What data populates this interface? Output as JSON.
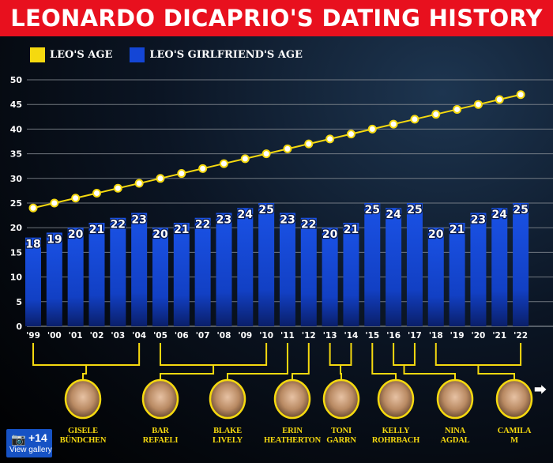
{
  "title": "LEONARDO DICAPRIO'S DATING HISTORY",
  "colors": {
    "leo": "#f5d90f",
    "girlfriend": "#1446d6",
    "title_bg": "#e8101e"
  },
  "chart_data": {
    "type": "bar+line",
    "title": "LEONARDO DICAPRIO'S DATING HISTORY",
    "categories": [
      "'99",
      "'00",
      "'01",
      "'02",
      "'03",
      "'04",
      "'05",
      "'06",
      "'07",
      "'08",
      "'09",
      "'10",
      "'11",
      "'12",
      "'13",
      "'14",
      "'15",
      "'16",
      "'17",
      "'18",
      "'19",
      "'20",
      "'21",
      "'22"
    ],
    "series": [
      {
        "name": "LEO'S AGE",
        "type": "line",
        "values": [
          24,
          25,
          26,
          27,
          28,
          29,
          30,
          31,
          32,
          33,
          34,
          35,
          36,
          37,
          38,
          39,
          40,
          41,
          42,
          43,
          44,
          45,
          46,
          47
        ]
      },
      {
        "name": "LEO'S GIRLFRIEND'S AGE",
        "type": "bar",
        "values": [
          18,
          19,
          20,
          21,
          22,
          23,
          20,
          21,
          22,
          23,
          24,
          25,
          23,
          22,
          20,
          21,
          25,
          24,
          25,
          20,
          21,
          23,
          24,
          25
        ]
      }
    ],
    "y_ticks": [
      0,
      5,
      10,
      15,
      20,
      25,
      30,
      35,
      40,
      45,
      50
    ],
    "ylim": [
      0,
      50
    ],
    "grid": true,
    "legend": "top-left",
    "girlfriends": [
      {
        "name_line1": "GISELE",
        "name_line2": "BÜNDCHEN",
        "years": [
          "'99",
          "'04"
        ]
      },
      {
        "name_line1": "BAR",
        "name_line2": "REFAELI",
        "years": [
          "'05",
          "'10"
        ]
      },
      {
        "name_line1": "BLAKE",
        "name_line2": "LIVELY",
        "years": [
          "'11",
          "'11"
        ]
      },
      {
        "name_line1": "ERIN",
        "name_line2": "HEATHERTON",
        "years": [
          "'12",
          "'12"
        ]
      },
      {
        "name_line1": "TONI",
        "name_line2": "GARRN",
        "years": [
          "'13",
          "'14"
        ]
      },
      {
        "name_line1": "KELLY",
        "name_line2": "ROHRBACH",
        "years": [
          "'15",
          "'15"
        ]
      },
      {
        "name_line1": "NINA",
        "name_line2": "AGDAL",
        "years": [
          "'16",
          "'17"
        ]
      },
      {
        "name_line1": "CAMILA",
        "name_line2": "M",
        "years": [
          "'18",
          "'22"
        ]
      }
    ]
  },
  "legend": {
    "leo": "LEO'S AGE",
    "girlfriend": "LEO'S GIRLFRIEND'S AGE"
  },
  "gallery": {
    "count": "+14",
    "label": "View gallery",
    "icon": "camera-icon"
  },
  "share_icon": "share-icon"
}
